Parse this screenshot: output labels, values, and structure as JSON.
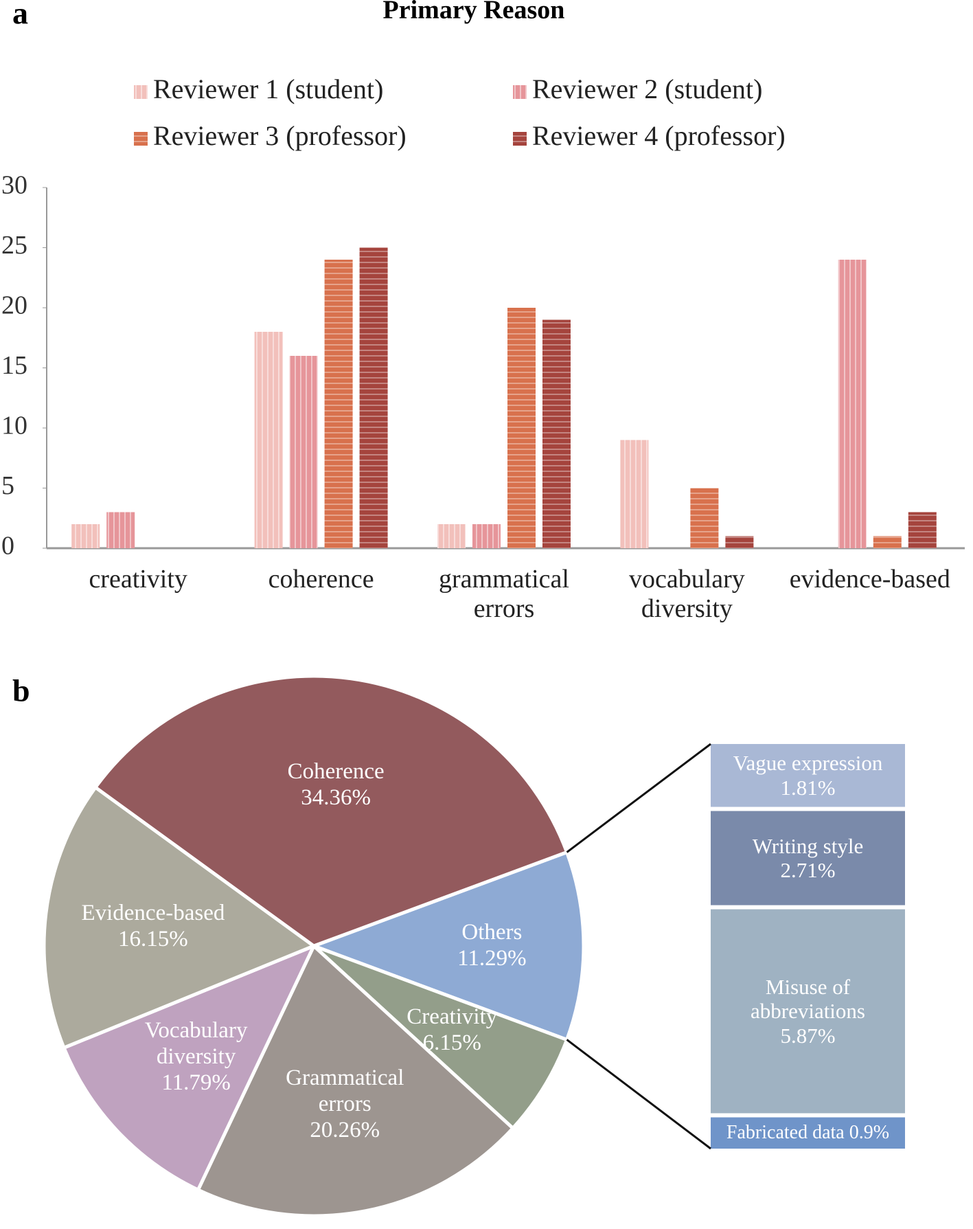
{
  "chart_data": [
    {
      "type": "bar",
      "panel_label": "a",
      "title": "Primary Reason",
      "categories": [
        "creativity",
        "coherence",
        "grammatical errors",
        "vocabulary diversity",
        "evidence-based"
      ],
      "series": [
        {
          "name": "Reviewer 1 (student)",
          "color": "#f2c0bb",
          "pattern": "vertical",
          "values": [
            2,
            18,
            2,
            9,
            0
          ]
        },
        {
          "name": "Reviewer 2 (student)",
          "color": "#e6959a",
          "pattern": "vertical",
          "values": [
            3,
            16,
            2,
            0,
            24
          ]
        },
        {
          "name": "Reviewer 3 (professor)",
          "color": "#d8714d",
          "pattern": "horizontal",
          "values": [
            0,
            24,
            20,
            5,
            1
          ]
        },
        {
          "name": "Reviewer 4 (professor)",
          "color": "#a5443d",
          "pattern": "horizontal",
          "values": [
            0,
            25,
            19,
            1,
            3
          ]
        }
      ],
      "ylim": [
        0,
        30
      ],
      "yticks": [
        0,
        5,
        10,
        15,
        20,
        25,
        30
      ],
      "grid": false
    },
    {
      "type": "pie",
      "panel_label": "b",
      "categories": [
        "Others",
        "Creativity",
        "Grammatical errors",
        "Vocabulary diversity",
        "Evidence-based",
        "Coherence"
      ],
      "values": [
        11.29,
        6.15,
        20.26,
        11.79,
        16.15,
        34.36
      ],
      "value_labels": [
        "11.29%",
        "6.15%",
        "20.26%",
        "11.79%",
        "16.15%",
        "34.36%"
      ],
      "colors": [
        "#8eaad4",
        "#939e8a",
        "#9d9590",
        "#bfa2bf",
        "#acaa9d",
        "#935a5d"
      ]
    },
    {
      "type": "stacked-column",
      "categories": [
        "Vague expression",
        "Writing style",
        "Misuse of abbreviations",
        "Fabricated data"
      ],
      "values": [
        1.81,
        2.71,
        5.87,
        0.9
      ],
      "value_labels": [
        "1.81%",
        "2.71%",
        "5.87%",
        "0.9%"
      ],
      "colors": [
        "#a9b8d5",
        "#7a8aaa",
        "#9fb2c2",
        "#6f94c9"
      ]
    }
  ]
}
